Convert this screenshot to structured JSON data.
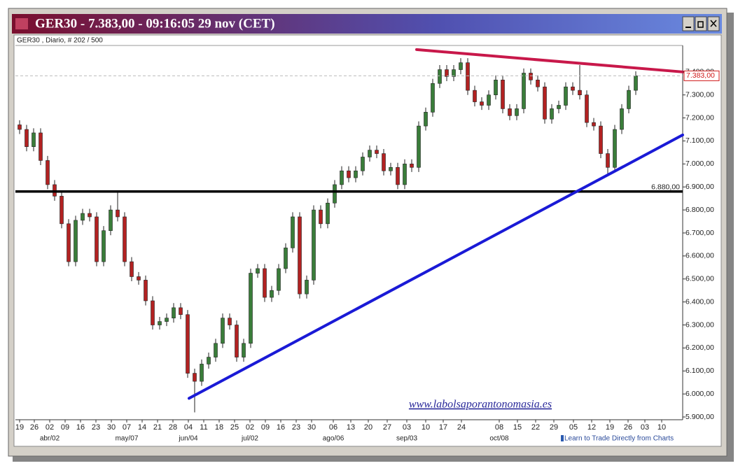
{
  "chart_data": {
    "type": "candlestick",
    "title": "GER30 - 7.383,00 - 09:16:05  29 nov (CET)",
    "subtitle": "GER30 , Diario, # 202 / 500",
    "watermark": "www.labolsaporantonomasia.es",
    "footer": "Learn to Trade Directly from Charts",
    "up_color": "#3a7d3a",
    "down_color": "#b22222",
    "x": [
      0,
      1,
      2,
      3,
      4,
      5,
      6,
      7,
      8,
      9,
      10,
      11,
      12,
      13,
      14,
      15,
      16,
      17,
      18,
      19,
      20,
      21,
      22,
      23,
      24,
      25,
      26,
      27,
      28,
      29,
      30,
      31,
      32,
      33,
      34,
      35,
      36,
      37,
      38,
      39,
      40,
      41,
      42,
      43,
      44,
      45,
      46,
      47,
      48,
      49,
      50,
      51,
      52,
      53,
      54,
      55,
      56,
      57,
      58,
      59,
      60,
      61,
      62,
      63,
      64,
      65,
      66,
      67,
      68,
      69,
      70,
      71,
      72,
      73,
      74,
      75,
      76,
      77,
      78,
      79,
      80,
      81,
      82,
      83,
      84,
      85,
      86,
      87,
      88
    ],
    "open": [
      7170,
      7150,
      7075,
      7135,
      7015,
      6910,
      6860,
      6740,
      6575,
      6755,
      6785,
      6770,
      6575,
      6710,
      6800,
      6770,
      6575,
      6510,
      6495,
      6405,
      6300,
      6315,
      6330,
      6375,
      6345,
      6090,
      6055,
      6130,
      6160,
      6220,
      6330,
      6300,
      6160,
      6220,
      6525,
      6545,
      6420,
      6450,
      6545,
      6635,
      6770,
      6435,
      6495,
      6800,
      6740,
      6830,
      6910,
      6970,
      6940,
      6970,
      7030,
      7060,
      7045,
      6970,
      6985,
      6910,
      7000,
      6985,
      7165,
      7225,
      7350,
      7410,
      7380,
      7410,
      7440,
      7320,
      7270,
      7255,
      7300,
      7365,
      7240,
      7210,
      7240,
      7395,
      7365,
      7335,
      7195,
      7240,
      7255,
      7335,
      7320,
      7300,
      7180,
      7165,
      7045,
      6985,
      7150,
      7240,
      7320
    ],
    "high": [
      7190,
      7170,
      7155,
      7155,
      7035,
      6930,
      6880,
      6760,
      6775,
      6805,
      6805,
      6790,
      6730,
      6820,
      6880,
      6790,
      6595,
      6530,
      6515,
      6425,
      6335,
      6350,
      6395,
      6395,
      6365,
      6110,
      6150,
      6180,
      6240,
      6350,
      6350,
      6320,
      6240,
      6545,
      6565,
      6565,
      6470,
      6565,
      6655,
      6790,
      6790,
      6515,
      6820,
      6820,
      6850,
      6930,
      6990,
      6990,
      6990,
      7050,
      7080,
      7080,
      7065,
      7005,
      7005,
      7020,
      7020,
      7185,
      7245,
      7370,
      7430,
      7430,
      7430,
      7460,
      7460,
      7340,
      7290,
      7320,
      7385,
      7385,
      7260,
      7260,
      7415,
      7415,
      7385,
      7355,
      7260,
      7275,
      7355,
      7355,
      7430,
      7320,
      7200,
      7185,
      7065,
      7170,
      7260,
      7340,
      7403
    ],
    "low": [
      7130,
      7055,
      7055,
      6995,
      6890,
      6840,
      6720,
      6555,
      6555,
      6735,
      6750,
      6555,
      6555,
      6690,
      6750,
      6555,
      6490,
      6475,
      6385,
      6280,
      6280,
      6295,
      6310,
      6325,
      6070,
      5920,
      6035,
      6110,
      6140,
      6200,
      6280,
      6140,
      6140,
      6200,
      6505,
      6400,
      6400,
      6430,
      6525,
      6615,
      6415,
      6415,
      6475,
      6720,
      6720,
      6810,
      6890,
      6920,
      6920,
      6950,
      7010,
      7025,
      6950,
      6950,
      6890,
      6890,
      6965,
      6965,
      7145,
      7205,
      7330,
      7360,
      7360,
      7390,
      7300,
      7250,
      7235,
      7235,
      7280,
      7220,
      7190,
      7190,
      7220,
      7345,
      7315,
      7175,
      7175,
      7220,
      7235,
      7300,
      7280,
      7160,
      7145,
      7025,
      6955,
      6965,
      7130,
      7220,
      7300
    ],
    "close": [
      7150,
      7075,
      7135,
      7015,
      6910,
      6860,
      6740,
      6575,
      6755,
      6785,
      6770,
      6575,
      6710,
      6800,
      6770,
      6575,
      6510,
      6495,
      6405,
      6300,
      6315,
      6330,
      6375,
      6345,
      6090,
      6055,
      6130,
      6160,
      6220,
      6330,
      6300,
      6160,
      6220,
      6525,
      6545,
      6420,
      6450,
      6545,
      6635,
      6770,
      6435,
      6495,
      6800,
      6740,
      6830,
      6910,
      6970,
      6940,
      6970,
      7030,
      7060,
      7045,
      6970,
      6985,
      6910,
      7000,
      6985,
      7165,
      7225,
      7350,
      7410,
      7380,
      7410,
      7440,
      7320,
      7270,
      7255,
      7300,
      7365,
      7240,
      7210,
      7240,
      7395,
      7365,
      7335,
      7195,
      7240,
      7255,
      7335,
      7320,
      7300,
      7180,
      7165,
      7045,
      6985,
      7150,
      7240,
      7320,
      7383
    ],
    "xlim": [
      -0.6,
      94.7
    ],
    "xticks": [
      {
        "value": 0,
        "label": "19"
      },
      {
        "value": 2.1,
        "label": "26"
      },
      {
        "value": 4.3,
        "label": "02"
      },
      {
        "value": 6.5,
        "label": "09"
      },
      {
        "value": 8.7,
        "label": "16"
      },
      {
        "value": 10.9,
        "label": "23"
      },
      {
        "value": 13.1,
        "label": "30"
      },
      {
        "value": 15.3,
        "label": "07"
      },
      {
        "value": 17.5,
        "label": "14"
      },
      {
        "value": 19.7,
        "label": "21"
      },
      {
        "value": 21.9,
        "label": "28"
      },
      {
        "value": 24.1,
        "label": "04"
      },
      {
        "value": 26.3,
        "label": "11"
      },
      {
        "value": 28.5,
        "label": "18"
      },
      {
        "value": 30.7,
        "label": "25"
      },
      {
        "value": 32.9,
        "label": "02"
      },
      {
        "value": 35.1,
        "label": "09"
      },
      {
        "value": 37.3,
        "label": "16"
      },
      {
        "value": 39.5,
        "label": "23"
      },
      {
        "value": 41.7,
        "label": "30"
      },
      {
        "value": 44.8,
        "label": "06"
      },
      {
        "value": 47.3,
        "label": "13"
      },
      {
        "value": 49.8,
        "label": "20"
      },
      {
        "value": 52.5,
        "label": "27"
      },
      {
        "value": 55.3,
        "label": "03"
      },
      {
        "value": 58,
        "label": "10"
      },
      {
        "value": 60.5,
        "label": "17"
      },
      {
        "value": 63.1,
        "label": "24"
      },
      {
        "value": 68.5,
        "label": "08"
      },
      {
        "value": 71.1,
        "label": "15"
      },
      {
        "value": 73.7,
        "label": "22"
      },
      {
        "value": 76.3,
        "label": "29"
      },
      {
        "value": 79.1,
        "label": "05"
      },
      {
        "value": 81.7,
        "label": "12"
      },
      {
        "value": 84.3,
        "label": "19"
      },
      {
        "value": 86.9,
        "label": "26"
      },
      {
        "value": 89.3,
        "label": "03"
      },
      {
        "value": 91.7,
        "label": "10"
      }
    ],
    "month_ticks": [
      {
        "value": 4.3,
        "label": "abr/02"
      },
      {
        "value": 15.3,
        "label": "may/07"
      },
      {
        "value": 24.1,
        "label": "jun/04"
      },
      {
        "value": 32.9,
        "label": "jul/02"
      },
      {
        "value": 44.8,
        "label": "ago/06"
      },
      {
        "value": 55.3,
        "label": "sep/03"
      },
      {
        "value": 68.5,
        "label": "oct/08"
      }
    ],
    "ylim": [
      5888,
      7515
    ],
    "yticks": [
      {
        "value": 5900,
        "label": "5.900,00"
      },
      {
        "value": 6000,
        "label": "6.000,00"
      },
      {
        "value": 6100,
        "label": "6.100,00"
      },
      {
        "value": 6200,
        "label": "6.200,00"
      },
      {
        "value": 6300,
        "label": "6.300,00"
      },
      {
        "value": 6400,
        "label": "6.400,00"
      },
      {
        "value": 6500,
        "label": "6.500,00"
      },
      {
        "value": 6600,
        "label": "6.600,00"
      },
      {
        "value": 6700,
        "label": "6.700,00"
      },
      {
        "value": 6800,
        "label": "6.800,00"
      },
      {
        "value": 6900,
        "label": "6.900,00"
      },
      {
        "value": 7000,
        "label": "7.000,00"
      },
      {
        "value": 7100,
        "label": "7.100,00"
      },
      {
        "value": 7200,
        "label": "7.200,00"
      },
      {
        "value": 7300,
        "label": "7.300,00"
      },
      {
        "value": 7400,
        "label": "7.400,00"
      }
    ],
    "last_price": {
      "value": 7383,
      "label": "7.383,00",
      "color": "#d01818"
    },
    "level": {
      "value": 6880,
      "label": "6.880,00",
      "color": "#000000"
    },
    "trendlines": [
      {
        "x": [
          56.7,
          94.7
        ],
        "y": [
          7497,
          7400
        ],
        "color": "#c8184a"
      },
      {
        "x": [
          24.2,
          94.7
        ],
        "y": [
          5981,
          7126
        ],
        "color": "#1a1ad6"
      }
    ]
  }
}
